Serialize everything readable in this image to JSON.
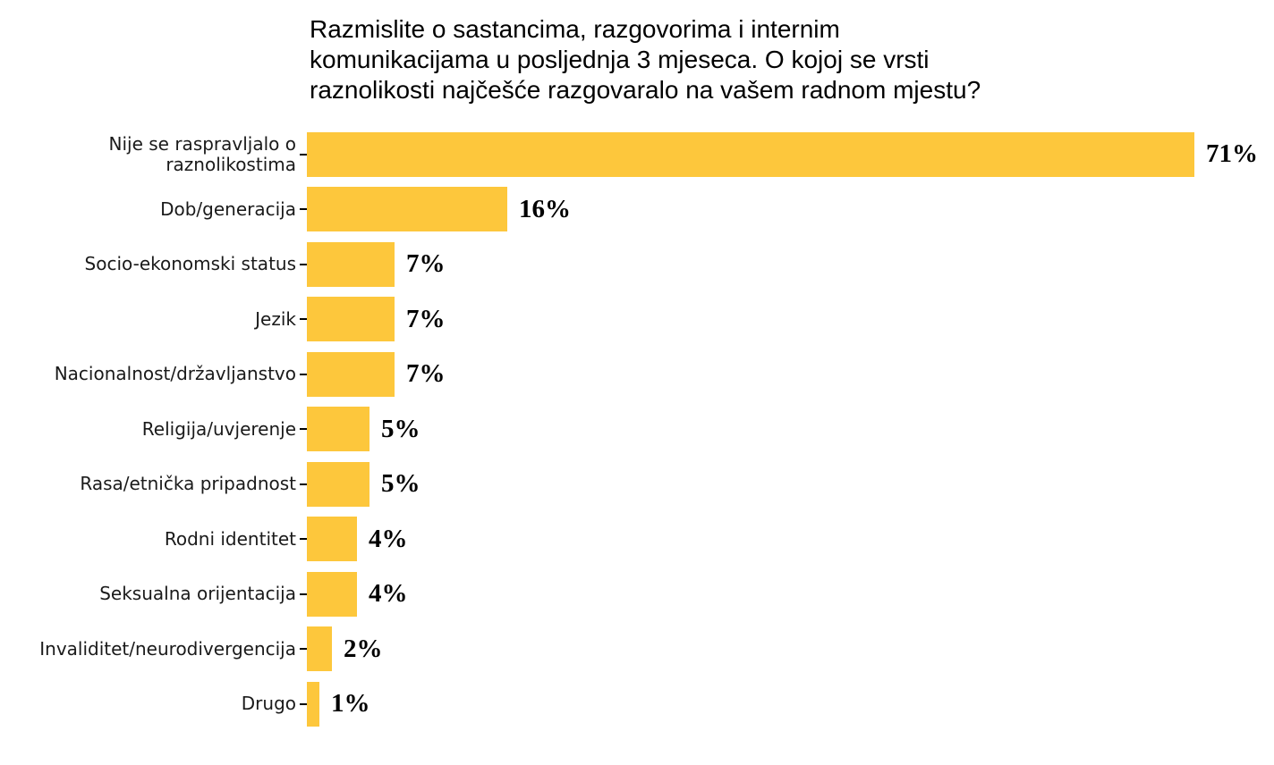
{
  "chart": {
    "title_lines": [
      "Razmislite o sastancima, razgovorima i internim",
      "komunikacijama u posljednja 3 mjeseca. O kojoj se vrsti",
      "raznolikosti najčešće razgovaralo na vašem radnom mjestu?"
    ],
    "display_labels": [
      "Nije se raspravljalo o\nraznolikostima",
      "Dob/generacija",
      "Socio-ekonomski status",
      "Jezik",
      "Nacionalnost/državljanstvo",
      "Religija/uvjerenje",
      "Rasa/etnička pripadnost",
      "Rodni identitet",
      "Seksualna orijentacija",
      "Invaliditet/neurodivergencija",
      "Drugo"
    ]
  },
  "chart_data": {
    "type": "bar",
    "orientation": "horizontal",
    "title": "Razmislite o sastancima, razgovorima i internim komunikacijama u posljednja 3 mjeseca. O kojoj se vrsti raznolikosti najčešće razgovaralo na vašem radnom mjestu?",
    "categories": [
      "Nije se raspravljalo o raznolikostima",
      "Dob/generacija",
      "Socio-ekonomski status",
      "Jezik",
      "Nacionalnost/državljanstvo",
      "Religija/uvjerenje",
      "Rasa/etnička pripadnost",
      "Rodni identitet",
      "Seksualna orijentacija",
      "Invaliditet/neurodivergencija",
      "Drugo"
    ],
    "values": [
      71,
      16,
      7,
      7,
      7,
      5,
      5,
      4,
      4,
      2,
      1
    ],
    "value_labels": [
      "71%",
      "16%",
      "7%",
      "7%",
      "7%",
      "5%",
      "5%",
      "4%",
      "4%",
      "2%",
      "1%"
    ],
    "xlabel": "",
    "ylabel": "",
    "xlim": [
      0,
      75
    ],
    "grid": false,
    "legend": false,
    "bar_color": "#FDC73C",
    "category_label_color": "#1a1a1a",
    "value_label_color": "#000000",
    "background_color": "#ffffff"
  }
}
